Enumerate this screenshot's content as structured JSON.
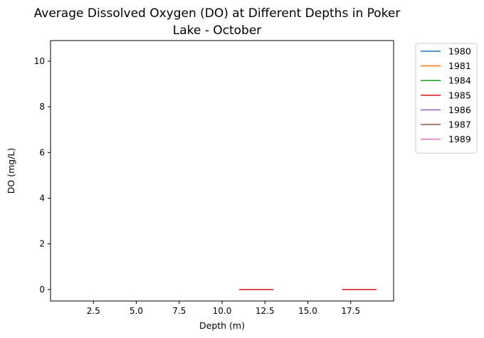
{
  "chart_data": {
    "type": "line",
    "title_line1": "Average Dissolved Oxygen (DO) at Different Depths in Poker",
    "title_line2": "Lake - October",
    "xlabel": "Depth (m)",
    "ylabel": "DO (mg/L)",
    "xlim": [
      0,
      20
    ],
    "ylim": [
      -0.5,
      10.9
    ],
    "xticks": [
      2.5,
      5.0,
      7.5,
      10.0,
      12.5,
      15.0,
      17.5
    ],
    "xtick_labels": [
      "2.5",
      "5.0",
      "7.5",
      "10.0",
      "12.5",
      "15.0",
      "17.5"
    ],
    "yticks": [
      0,
      2,
      4,
      6,
      8,
      10
    ],
    "ytick_labels": [
      "0",
      "2",
      "4",
      "6",
      "8",
      "10"
    ],
    "grid": false,
    "legend_position": "outside-top-right",
    "series": [
      {
        "name": "1980",
        "color": "#1f77b4",
        "segments": []
      },
      {
        "name": "1981",
        "color": "#ff7f0e",
        "segments": []
      },
      {
        "name": "1984",
        "color": "#2ca02c",
        "segments": []
      },
      {
        "name": "1985",
        "color": "#d62728",
        "segments": [
          [
            [
              11,
              0
            ],
            [
              13,
              0
            ]
          ],
          [
            [
              17,
              0
            ],
            [
              19,
              0
            ]
          ]
        ]
      },
      {
        "name": "1986",
        "color": "#9467bd",
        "segments": []
      },
      {
        "name": "1987",
        "color": "#8c564b",
        "segments": []
      },
      {
        "name": "1989",
        "color": "#e377c2",
        "segments": []
      }
    ]
  }
}
